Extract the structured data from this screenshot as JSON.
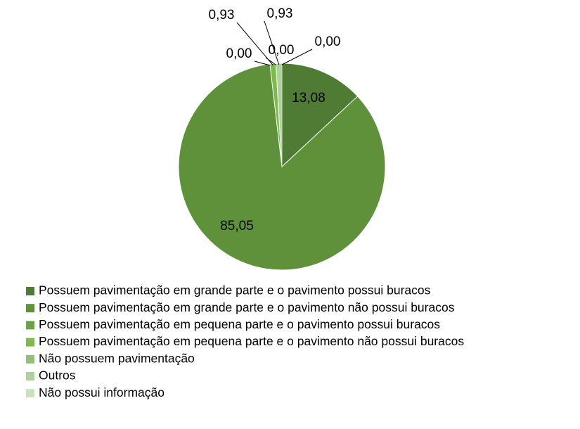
{
  "chart_data": {
    "type": "pie",
    "categories": [
      "Possuem pavimentação em grande parte e o pavimento possui buracos",
      "Possuem pavimentação em grande parte e o pavimento não possui buracos",
      "Possuem pavimentação em pequena parte e o pavimento possui buracos",
      "Possuem pavimentação em pequena parte e o pavimento não possui buracos",
      "Não possuem pavimentação",
      "Outros",
      "Não possui informação"
    ],
    "values": [
      13.08,
      85.05,
      0.0,
      0.93,
      0.0,
      0.93,
      0.0
    ],
    "value_labels": [
      "13,08",
      "85,05",
      "0,00",
      "0,93",
      "0,00",
      "0,93",
      "0,00"
    ],
    "colors": [
      "#4f7b34",
      "#5e913a",
      "#6aa342",
      "#7bbb4c",
      "#93bf7b",
      "#aed19c",
      "#cbe2bf"
    ],
    "legend": "bottom"
  }
}
